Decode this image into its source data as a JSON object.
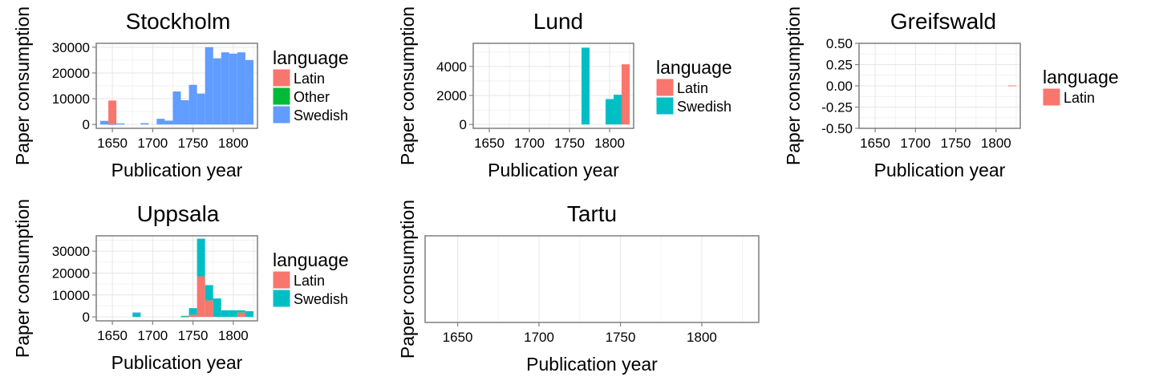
{
  "chart_data": [
    {
      "type": "bar",
      "title": "Stockholm",
      "xlabel": "Publication year",
      "ylabel": "Paper consumption",
      "xlim": [
        1630,
        1830
      ],
      "ylim": [
        -1500,
        31500
      ],
      "xticks": [
        1650,
        1700,
        1750,
        1800
      ],
      "xtick_labels": [
        "1650",
        "1700",
        "1750",
        "1800"
      ],
      "yticks": [
        0,
        10000,
        20000,
        30000
      ],
      "ytick_labels": [
        "0",
        "10000",
        "20000",
        "30000"
      ],
      "legend_title": "language",
      "legend": [
        {
          "name": "Latin",
          "color": "#F8766D"
        },
        {
          "name": "Other",
          "color": "#00BA38"
        },
        {
          "name": "Swedish",
          "color": "#619CFF"
        }
      ],
      "bin_width": 10,
      "series": [
        {
          "name": "Latin",
          "color": "#F8766D",
          "x": [
            1650
          ],
          "values": [
            9300
          ]
        },
        {
          "name": "Other",
          "color": "#00BA38",
          "x": [],
          "values": []
        },
        {
          "name": "Swedish",
          "color": "#619CFF",
          "x": [
            1640,
            1650,
            1660,
            1690,
            1710,
            1720,
            1730,
            1740,
            1750,
            1760,
            1770,
            1780,
            1790,
            1800,
            1810,
            1820
          ],
          "values": [
            1400,
            200,
            400,
            500,
            2200,
            1500,
            12800,
            9400,
            15400,
            12000,
            30000,
            25700,
            28000,
            27500,
            28000,
            25000
          ]
        }
      ]
    },
    {
      "type": "bar",
      "title": "Lund",
      "xlabel": "Publication year",
      "ylabel": "Paper consumption",
      "xlim": [
        1630,
        1830
      ],
      "ylim": [
        -270,
        5600
      ],
      "xticks": [
        1650,
        1700,
        1750,
        1800
      ],
      "xtick_labels": [
        "1650",
        "1700",
        "1750",
        "1800"
      ],
      "yticks": [
        0,
        2000,
        4000
      ],
      "ytick_labels": [
        "0",
        "2000",
        "4000"
      ],
      "legend_title": "language",
      "legend": [
        {
          "name": "Latin",
          "color": "#F8766D"
        },
        {
          "name": "Swedish",
          "color": "#00BFC4"
        }
      ],
      "bin_width": 10,
      "series": [
        {
          "name": "Latin",
          "color": "#F8766D",
          "x": [
            1820
          ],
          "values": [
            4150
          ]
        },
        {
          "name": "Swedish",
          "color": "#00BFC4",
          "x": [
            1770,
            1800,
            1810
          ],
          "values": [
            5300,
            1750,
            2050
          ]
        }
      ]
    },
    {
      "type": "bar",
      "title": "Greifswald",
      "xlabel": "Publication year",
      "ylabel": "Paper consumption",
      "xlim": [
        1630,
        1830
      ],
      "ylim": [
        -0.5,
        0.5
      ],
      "xticks": [
        1650,
        1700,
        1750,
        1800
      ],
      "xtick_labels": [
        "1650",
        "1700",
        "1750",
        "1800"
      ],
      "yticks": [
        -0.5,
        -0.25,
        0,
        0.25,
        0.5
      ],
      "ytick_labels": [
        "-0.50",
        "-0.25",
        "0.00",
        "0.25",
        "0.50"
      ],
      "legend_title": "language",
      "legend": [
        {
          "name": "Latin",
          "color": "#F8766D"
        }
      ],
      "bin_width": 10,
      "series": [
        {
          "name": "Latin",
          "color": "#F8766D",
          "x": [
            1820
          ],
          "values": [
            0
          ]
        }
      ]
    },
    {
      "type": "bar",
      "title": "Uppsala",
      "xlabel": "Publication year",
      "ylabel": "Paper consumption",
      "xlim": [
        1630,
        1830
      ],
      "ylim": [
        -1800,
        37000
      ],
      "xticks": [
        1650,
        1700,
        1750,
        1800
      ],
      "xtick_labels": [
        "1650",
        "1700",
        "1750",
        "1800"
      ],
      "yticks": [
        0,
        10000,
        20000,
        30000
      ],
      "ytick_labels": [
        "0",
        "10000",
        "20000",
        "30000"
      ],
      "legend_title": "language",
      "legend": [
        {
          "name": "Latin",
          "color": "#F8766D"
        },
        {
          "name": "Swedish",
          "color": "#00BFC4"
        }
      ],
      "bin_width": 10,
      "stacked": true,
      "series": [
        {
          "name": "Latin",
          "color": "#F8766D",
          "x": [
            1740,
            1750,
            1760,
            1770,
            1810
          ],
          "values": [
            300,
            1000,
            18500,
            7500,
            2000
          ]
        },
        {
          "name": "Swedish",
          "color": "#00BFC4",
          "x": [
            1680,
            1740,
            1750,
            1760,
            1770,
            1780,
            1790,
            1800,
            1810,
            1820
          ],
          "values": [
            2000,
            0,
            3000,
            17200,
            7000,
            8400,
            3000,
            3000,
            1000,
            2600
          ]
        }
      ]
    },
    {
      "type": "bar",
      "title": "Tartu",
      "xlabel": "Publication year",
      "ylabel": "Paper consumption",
      "xlim": [
        1630,
        1835
      ],
      "ylim": [
        0,
        1
      ],
      "xticks": [
        1650,
        1700,
        1750,
        1800
      ],
      "xtick_labels": [
        "1650",
        "1700",
        "1750",
        "1800"
      ],
      "yticks": [],
      "ytick_labels": [],
      "legend_title": "",
      "legend": [],
      "bin_width": 10,
      "series": []
    }
  ]
}
